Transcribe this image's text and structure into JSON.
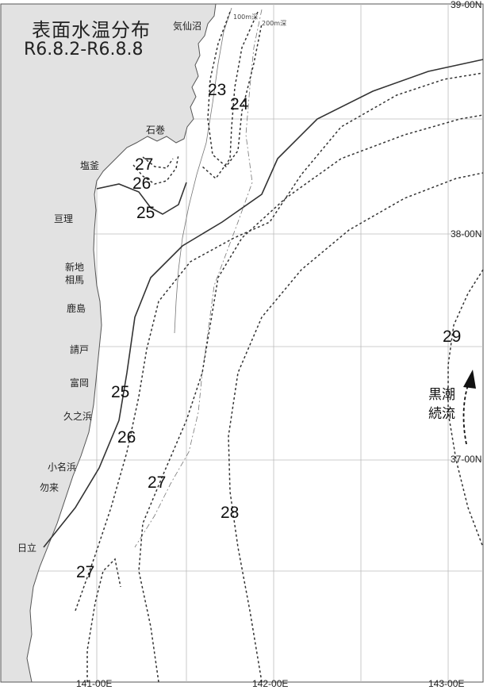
{
  "map": {
    "title": "表面水温分布",
    "period": "R6.8.2-R6.8.8",
    "grid_labels": {
      "lat_39": "39-00N",
      "lat_38": "38-00N",
      "lat_37": "37-00N",
      "lon_141": "141-00E",
      "lon_142": "142-00E",
      "lon_143": "143-00E"
    },
    "depth_labels": {
      "d100": "100m深",
      "d200": "200m深"
    },
    "places": {
      "kesennuma": "気仙沼",
      "ishinomaki": "石巻",
      "shiogama": "塩釜",
      "watari": "亘理",
      "shinchi": "新地",
      "soma": "相馬",
      "kashima": "鹿島",
      "ukedo": "請戸",
      "tomioka": "富岡",
      "hisanohama": "久之浜",
      "onahama": "小名浜",
      "nakoso": "勿来",
      "hitachi": "日立"
    },
    "isotherms": {
      "i23": "23",
      "i24": "24",
      "i27a": "27",
      "i26a": "26",
      "i25a": "25",
      "i25b": "25",
      "i26b": "26",
      "i27b": "27",
      "i28": "28",
      "i29": "29",
      "i27c": "27"
    },
    "current_label_1": "黒潮",
    "current_label_2": "続流",
    "colors": {
      "land": "#e2e2e2",
      "sea": "#ffffff",
      "line": "#333333"
    }
  }
}
